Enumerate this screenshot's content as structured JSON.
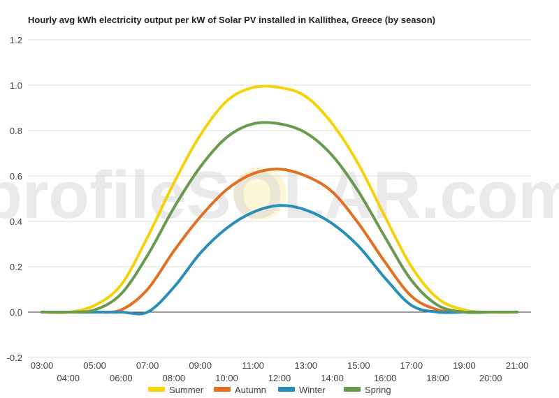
{
  "chart_data": {
    "type": "line",
    "title": "Hourly avg kWh electricity output per kW of Solar PV installed in Kallithea, Greece (by season)",
    "xlabel": "",
    "ylabel": "",
    "ylim": [
      -0.2,
      1.2
    ],
    "yticks": [
      "-0.2",
      "0.0",
      "0.2",
      "0.4",
      "0.6",
      "0.8",
      "1.0",
      "1.2"
    ],
    "yticks_values": [
      -0.2,
      0,
      0.2,
      0.4,
      0.6,
      0.8,
      1.0,
      1.2
    ],
    "categories": [
      "03:00",
      "04:00",
      "05:00",
      "06:00",
      "07:00",
      "08:00",
      "09:00",
      "10:00",
      "11:00",
      "12:00",
      "13:00",
      "14:00",
      "15:00",
      "16:00",
      "17:00",
      "18:00",
      "19:00",
      "20:00",
      "21:00"
    ],
    "grid": true,
    "legend_position": "bottom",
    "watermark": "profileSOLAR.com",
    "series": [
      {
        "name": "Summer",
        "color": "#f5d20a",
        "values": [
          0,
          0,
          0.03,
          0.12,
          0.33,
          0.57,
          0.78,
          0.93,
          0.99,
          0.99,
          0.95,
          0.83,
          0.65,
          0.42,
          0.2,
          0.06,
          0.01,
          0,
          0
        ]
      },
      {
        "name": "Autumn",
        "color": "#e26f22",
        "values": [
          0,
          0,
          0,
          0.01,
          0.1,
          0.27,
          0.42,
          0.54,
          0.61,
          0.63,
          0.6,
          0.53,
          0.39,
          0.22,
          0.07,
          0.01,
          0,
          0,
          0
        ]
      },
      {
        "name": "Winter",
        "color": "#2a8fb8",
        "values": [
          0,
          0,
          0,
          0,
          0,
          0.11,
          0.26,
          0.37,
          0.44,
          0.47,
          0.45,
          0.39,
          0.29,
          0.15,
          0.03,
          0,
          0,
          0,
          0
        ]
      },
      {
        "name": "Spring",
        "color": "#6a9a4e",
        "values": [
          0,
          0,
          0.01,
          0.08,
          0.25,
          0.46,
          0.64,
          0.77,
          0.83,
          0.83,
          0.79,
          0.69,
          0.53,
          0.33,
          0.14,
          0.03,
          0,
          0,
          0
        ]
      }
    ]
  }
}
